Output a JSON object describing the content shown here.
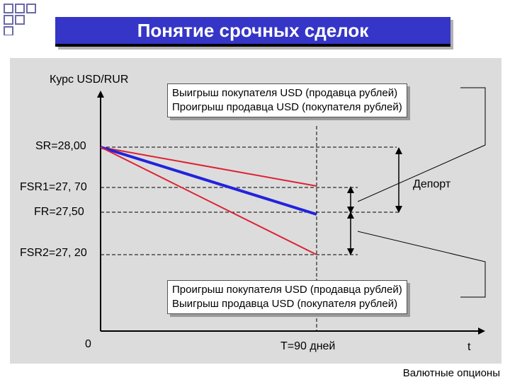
{
  "title": "Понятие срочных сделок",
  "y_axis_label": "Курс USD/RUR",
  "rates": {
    "sr": "SR=28,00",
    "fsr1": "FSR1=27, 70",
    "fr": "FR=27,50",
    "fsr2": "FSR2=27, 20"
  },
  "boxes": {
    "top_line1": "Выигрыш покупателя USD (продавца рублей)",
    "top_line2": "Проигрыш продавца USD (покупателя рублей)",
    "bottom_line1": "Проигрыш покупателя USD (продавца рублей)",
    "bottom_line2": "Выигрыш продавца USD (покупателя рублей)"
  },
  "deport_label": "Депорт",
  "x_axis": {
    "origin": "0",
    "maturity": "Т=90 дней",
    "t_label": "t"
  },
  "footer": "Валютные опционы",
  "colors": {
    "title_bg": "#3535c8",
    "panel_bg": "#dcdcdc",
    "forward_line": "#2222dd",
    "spread_line": "#dd2233",
    "deco": "#6a6aa8"
  },
  "chart_data": {
    "type": "line",
    "x": [
      0,
      90
    ],
    "series": [
      {
        "values": [
          28.0,
          27.7
        ]
      },
      {
        "values": [
          28.0,
          27.5
        ]
      },
      {
        "values": [
          28.0,
          27.2
        ]
      }
    ]
  }
}
